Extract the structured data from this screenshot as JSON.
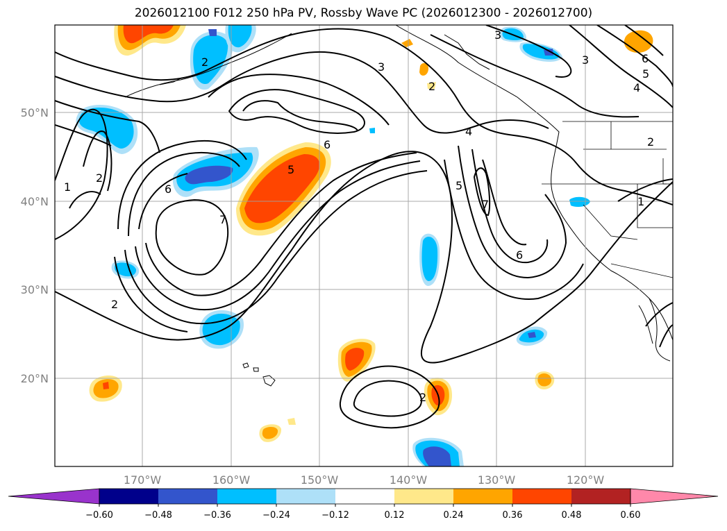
{
  "title": "2026012100 F012 250 hPa PV, Rossby Wave PC (2026012300 - 2026012700)",
  "map": {
    "lon_labels": [
      "170°W",
      "160°W",
      "150°W",
      "140°W",
      "130°W",
      "120°W"
    ],
    "lat_labels": [
      "50°N",
      "40°N",
      "30°N",
      "20°N"
    ],
    "contour_labels": [
      "2",
      "3",
      "3",
      "2",
      "6",
      "5",
      "3",
      "4",
      "1",
      "2",
      "6",
      "7",
      "6",
      "5",
      "4",
      "5",
      "7",
      "6",
      "2",
      "2",
      "1",
      "2"
    ]
  },
  "colorbar": {
    "ticks": [
      "−0.60",
      "−0.48",
      "−0.36",
      "−0.24",
      "−0.12",
      "0.12",
      "0.24",
      "0.36",
      "0.48",
      "0.60"
    ],
    "colors": [
      "#9933cc",
      "#00008b",
      "#3355cc",
      "#00bfff",
      "#aee0f8",
      "#ffffff",
      "#ffe88a",
      "#ffa500",
      "#ff4500",
      "#b22222",
      "#ff88aa"
    ]
  }
}
